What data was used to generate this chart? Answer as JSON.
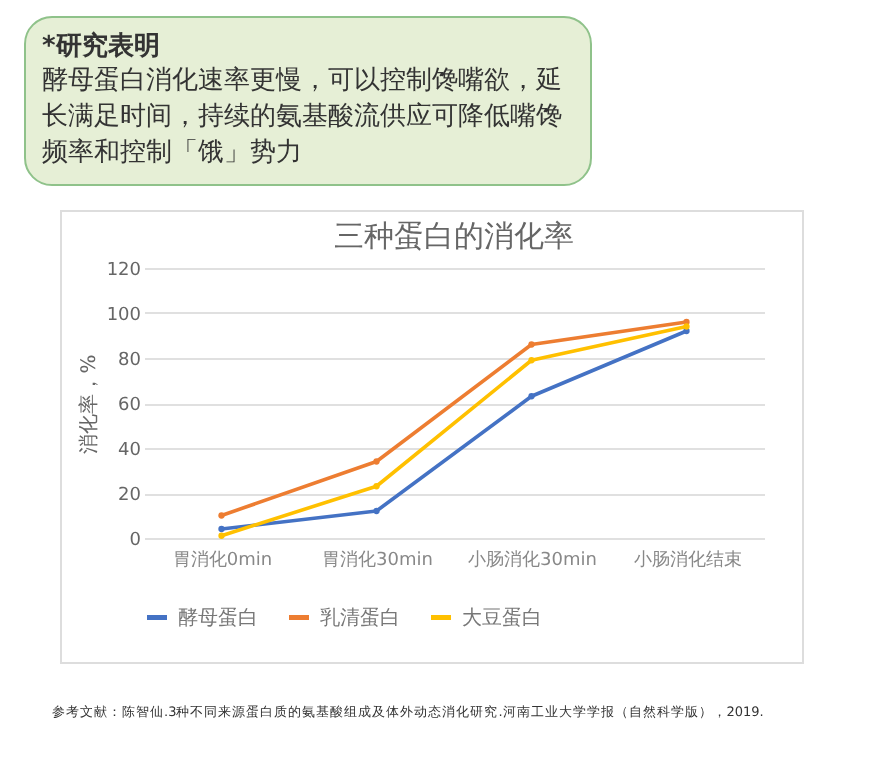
{
  "chart_data": {
    "type": "line",
    "title": "三种蛋白的消化率",
    "ylabel": "消化率，%",
    "categories": [
      "胃消化0min",
      "胃消化30min",
      "小肠消化30min",
      "小肠消化结束"
    ],
    "series": [
      {
        "name": "酵母蛋白",
        "color": "#4472c4",
        "values": [
          4,
          12,
          63,
          92
        ]
      },
      {
        "name": "乳清蛋白",
        "color": "#ed7d31",
        "values": [
          10,
          34,
          86,
          96
        ]
      },
      {
        "name": "大豆蛋白",
        "color": "#ffc000",
        "values": [
          1,
          23,
          79,
          94
        ]
      }
    ],
    "ylim": [
      0,
      120
    ],
    "yticks": [
      0,
      20,
      40,
      60,
      80,
      100,
      120
    ],
    "grid": "y",
    "legend": "bottom",
    "marker": "circle",
    "line_style": "solid",
    "annotations": [
      "*研究表明",
      "酵母蛋白消化速率更慢，可以控制馋嘴欲，延长满足时间，持续的氨基酸流供应可降低嘴馋频率和控制「饿」势力",
      "参考文献：陈智仙.3种不同来源蛋白质的氨基酸组成及体外动态消化研究.河南工业大学学报（自然科学版），2019."
    ]
  }
}
